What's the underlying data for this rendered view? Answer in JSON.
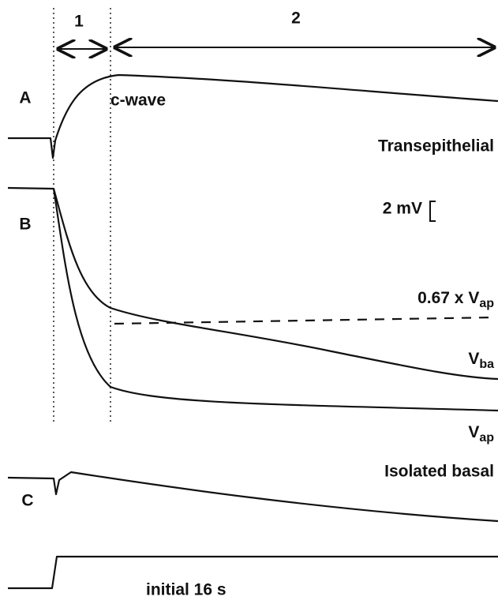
{
  "labels": {
    "phase1": "1",
    "phase2": "2",
    "panel_a": "A",
    "panel_b": "B",
    "panel_c": "C",
    "c_wave": "c-wave",
    "transepithelial": "Transepithelial",
    "scale": "2 mV",
    "scaled_vap": {
      "main": "0.67 x V",
      "sub": "ap"
    },
    "vba": {
      "main": "V",
      "sub": "ba"
    },
    "vap": {
      "main": "V",
      "sub": "ap"
    },
    "isolated_basal": "Isolated basal",
    "stimulus": "initial 16 s"
  }
}
